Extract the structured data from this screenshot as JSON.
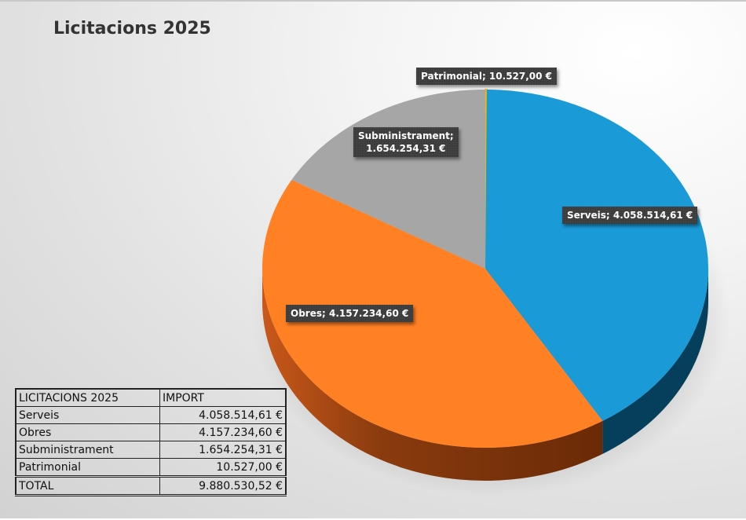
{
  "title": "Licitacions 2025",
  "labels": {
    "patrimonial": "Patrimonial; 10.527,00 €",
    "subministrament_line1": "Subministrament;",
    "subministrament_line2": "1.654.254,31 €",
    "serveis": "Serveis; 4.058.514,61 €",
    "obres": "Obres; 4.157.234,60 €"
  },
  "table": {
    "headers": [
      "LICITACIONS 2025",
      "IMPORT"
    ],
    "rows": [
      {
        "name": "Serveis",
        "value": "4.058.514,61 €"
      },
      {
        "name": "Obres",
        "value": "4.157.234,60 €"
      },
      {
        "name": "Subministrament",
        "value": "1.654.254,31 €"
      },
      {
        "name": "Patrimonial",
        "value": "10.527,00 €"
      }
    ],
    "total": {
      "name": "TOTAL",
      "value": "9.880.530,52 €"
    }
  },
  "colors": {
    "serveis": "#1a9ad6",
    "obres": "#ff8124",
    "subministrament": "#a6a6a6",
    "patrimonial": "#f2b800"
  },
  "chart_data": {
    "type": "pie",
    "title": "Licitacions 2025",
    "categories": [
      "Serveis",
      "Obres",
      "Subministrament",
      "Patrimonial"
    ],
    "values": [
      4058514.61,
      4157234.6,
      1654254.31,
      10527.0
    ],
    "total": 9880530.52,
    "data_labels": [
      "Serveis; 4.058.514,61 €",
      "Obres; 4.157.234,60 €",
      "Subministrament; 1.654.254,31 €",
      "Patrimonial; 10.527,00 €"
    ],
    "style": "3d",
    "legend": "none"
  }
}
